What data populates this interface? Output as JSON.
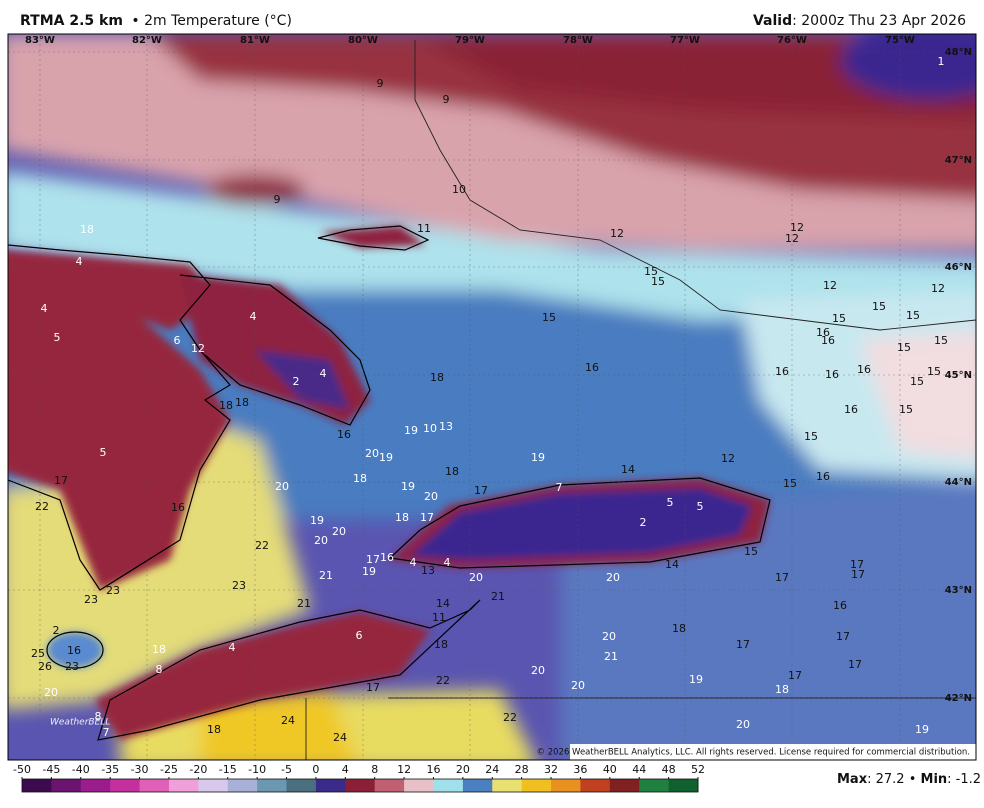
{
  "header": {
    "title": "RTMA 2.5 km",
    "subtitle": "• 2m Temperature (°C)",
    "valid_label": "Valid",
    "valid_text": ": 2000z Thu 23 Apr 2026"
  },
  "map": {
    "longitude_labels": [
      "83°W",
      "82°W",
      "81°W",
      "80°W",
      "79°W",
      "78°W",
      "77°W",
      "76°W",
      "75°W"
    ],
    "latitude_labels": [
      "48°N",
      "47°N",
      "46°N",
      "45°N",
      "44°N",
      "43°N",
      "42°N"
    ],
    "temperature_labels": [
      9,
      9,
      9,
      10,
      11,
      12,
      12,
      12,
      18,
      4,
      15,
      15,
      12,
      12,
      4,
      5,
      4,
      6,
      12,
      15,
      15,
      15,
      15,
      16,
      16,
      15,
      15,
      2,
      4,
      18,
      16,
      16,
      16,
      16,
      15,
      15,
      18,
      18,
      16,
      19,
      10,
      13,
      19,
      20,
      16,
      15,
      5,
      19,
      18,
      18,
      20,
      19,
      20,
      17,
      14,
      12,
      15,
      17,
      15,
      16,
      7,
      22,
      16,
      18,
      17,
      19,
      20,
      20,
      5,
      5,
      2,
      22,
      17,
      16,
      4,
      13,
      4,
      15,
      14,
      17,
      17,
      17,
      19,
      21,
      23,
      23,
      23,
      20,
      21,
      20,
      21,
      14,
      11,
      16,
      6,
      2,
      16,
      4,
      18,
      18,
      18,
      20,
      17,
      17,
      25,
      26,
      23,
      21,
      17,
      8,
      20,
      22,
      19,
      17,
      17,
      20,
      18,
      20,
      8,
      22,
      24,
      20,
      19,
      7,
      24,
      18,
      1
    ],
    "credit": "WeatherBELL",
    "copyright": "© 2026 WeatherBELL Analytics, LLC. All rights reserved. License required for commercial distribution."
  },
  "colorbar": {
    "ticks": [
      -50,
      -45,
      -40,
      -35,
      -30,
      -25,
      -20,
      -15,
      -10,
      -5,
      0,
      4,
      8,
      12,
      16,
      20,
      24,
      28,
      32,
      36,
      40,
      44,
      48,
      52
    ],
    "colors": [
      "#3b0a4f",
      "#6a1470",
      "#9b1c8c",
      "#c4309e",
      "#e060b8",
      "#f0a0d8",
      "#d8c8ec",
      "#a8b0d8",
      "#6a98b0",
      "#4a7080",
      "#3a2a8a",
      "#8a2038",
      "#c06070",
      "#e8c0c8",
      "#a0e0ea",
      "#4a80c0",
      "#e8e070",
      "#f0c020",
      "#e89020",
      "#c04020",
      "#802020",
      "#208040",
      "#106030"
    ]
  },
  "footer": {
    "max_label": "Max",
    "max_text": ": 27.2 •",
    "min_label": "Min",
    "min_text": ": -1.2"
  }
}
